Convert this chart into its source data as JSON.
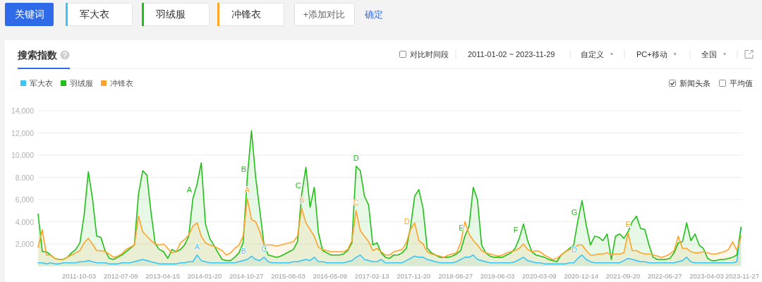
{
  "chart_data": {
    "type": "area",
    "title": "搜索指数",
    "legend": "top left",
    "grid": "y",
    "xlim": [
      "2011-01-02",
      "2023-11-27"
    ],
    "xticks": [
      "2011-10-03",
      "2012-07-09",
      "2013-04-15",
      "2014-01-20",
      "2014-10-27",
      "2015-08-03",
      "2016-05-09",
      "2017-02-13",
      "2017-11-20",
      "2018-08-27",
      "2019-06-03",
      "2020-03-09",
      "2020-12-14",
      "2021-09-20",
      "2022-06-27",
      "2023-04-03",
      "2023-11-27"
    ],
    "ylim": [
      0,
      14000
    ],
    "yticks": [
      {
        "value": 2000,
        "label": "2,000"
      },
      {
        "value": 4000,
        "label": "4,000"
      },
      {
        "value": 6000,
        "label": "6,000"
      },
      {
        "value": 8000,
        "label": "8,000"
      },
      {
        "value": 10000,
        "label": "10,000"
      },
      {
        "value": 12000,
        "label": "12,000"
      },
      {
        "value": 14000,
        "label": "14,000"
      }
    ],
    "x": [
      "2011-01-02",
      "2011-01-30",
      "2011-02-27",
      "2011-03-27",
      "2011-04-24",
      "2011-05-22",
      "2011-06-19",
      "2011-07-17",
      "2011-08-14",
      "2011-09-11",
      "2011-10-09",
      "2011-11-06",
      "2011-12-04",
      "2012-01-01",
      "2012-01-29",
      "2012-02-26",
      "2012-03-25",
      "2012-04-22",
      "2012-05-20",
      "2012-06-17",
      "2012-07-15",
      "2012-08-12",
      "2012-09-09",
      "2012-10-07",
      "2012-11-04",
      "2012-12-02",
      "2012-12-30",
      "2013-01-27",
      "2013-02-24",
      "2013-03-24",
      "2013-04-21",
      "2013-05-19",
      "2013-06-16",
      "2013-07-14",
      "2013-08-11",
      "2013-09-08",
      "2013-10-06",
      "2013-11-03",
      "2013-12-01",
      "2013-12-29",
      "2014-01-26",
      "2014-02-23",
      "2014-03-23",
      "2014-04-20",
      "2014-05-18",
      "2014-06-15",
      "2014-07-13",
      "2014-08-10",
      "2014-09-07",
      "2014-10-05",
      "2014-11-02",
      "2014-11-30",
      "2014-12-28",
      "2015-01-25",
      "2015-02-22",
      "2015-03-22",
      "2015-04-19",
      "2015-05-17",
      "2015-06-14",
      "2015-07-12",
      "2015-08-09",
      "2015-09-06",
      "2015-10-04",
      "2015-11-01",
      "2015-11-29",
      "2015-12-27",
      "2016-01-24",
      "2016-02-21",
      "2016-03-20",
      "2016-04-17",
      "2016-05-15",
      "2016-06-12",
      "2016-07-10",
      "2016-08-07",
      "2016-09-04",
      "2016-10-02",
      "2016-10-30",
      "2016-11-27",
      "2016-12-25",
      "2017-01-22",
      "2017-02-19",
      "2017-03-19",
      "2017-04-16",
      "2017-05-14",
      "2017-06-11",
      "2017-07-09",
      "2017-08-06",
      "2017-09-03",
      "2017-10-01",
      "2017-10-29",
      "2017-11-26",
      "2017-12-24",
      "2018-01-21",
      "2018-02-18",
      "2018-03-18",
      "2018-04-15",
      "2018-05-13",
      "2018-06-10",
      "2018-07-08",
      "2018-08-05",
      "2018-09-02",
      "2018-09-30",
      "2018-10-28",
      "2018-11-25",
      "2018-12-23",
      "2019-01-20",
      "2019-02-17",
      "2019-03-17",
      "2019-04-14",
      "2019-05-12",
      "2019-06-09",
      "2019-07-07",
      "2019-08-04",
      "2019-09-01",
      "2019-09-29",
      "2019-10-27",
      "2019-11-24",
      "2019-12-22",
      "2020-01-19",
      "2020-02-16",
      "2020-03-15",
      "2020-04-12",
      "2020-05-10",
      "2020-06-07",
      "2020-07-05",
      "2020-08-02",
      "2020-08-30",
      "2020-09-27",
      "2020-10-25",
      "2020-11-22",
      "2020-12-20",
      "2021-01-17",
      "2021-02-14",
      "2021-03-14",
      "2021-04-11",
      "2021-05-09",
      "2021-06-06",
      "2021-07-04",
      "2021-08-01",
      "2021-08-29",
      "2021-09-26",
      "2021-10-24",
      "2021-11-21",
      "2021-12-19",
      "2022-01-16",
      "2022-02-13",
      "2022-03-13",
      "2022-04-10",
      "2022-05-08",
      "2022-06-05",
      "2022-07-03",
      "2022-07-31",
      "2022-08-28",
      "2022-09-25",
      "2022-10-23",
      "2022-11-20",
      "2022-12-18",
      "2023-01-15",
      "2023-02-12",
      "2023-03-12",
      "2023-04-09",
      "2023-05-07",
      "2023-06-04",
      "2023-07-02",
      "2023-07-30",
      "2023-08-27",
      "2023-09-24",
      "2023-10-22",
      "2023-11-19"
    ],
    "series": [
      {
        "name": "军大衣",
        "color": "#3cc4f4",
        "values": [
          300,
          300,
          200,
          300,
          200,
          200,
          300,
          300,
          300,
          300,
          400,
          400,
          500,
          400,
          300,
          300,
          300,
          200,
          200,
          200,
          300,
          300,
          300,
          400,
          500,
          600,
          500,
          400,
          300,
          200,
          200,
          200,
          200,
          200,
          300,
          300,
          400,
          400,
          1000,
          500,
          400,
          300,
          300,
          300,
          300,
          300,
          300,
          300,
          400,
          500,
          600,
          900,
          600,
          500,
          800,
          400,
          300,
          300,
          300,
          300,
          300,
          400,
          400,
          500,
          600,
          500,
          800,
          400,
          400,
          300,
          300,
          300,
          300,
          300,
          400,
          500,
          800,
          1000,
          600,
          500,
          400,
          400,
          600,
          300,
          300,
          300,
          300,
          300,
          500,
          700,
          900,
          800,
          800,
          600,
          500,
          400,
          300,
          300,
          300,
          300,
          400,
          600,
          800,
          800,
          1000,
          600,
          500,
          400,
          300,
          300,
          300,
          300,
          300,
          300,
          400,
          600,
          800,
          500,
          400,
          300,
          300,
          200,
          200,
          200,
          200,
          200,
          200,
          300,
          300,
          700,
          1000,
          600,
          400,
          300,
          300,
          300,
          300,
          300,
          300,
          300,
          500,
          700,
          600,
          500,
          400,
          400,
          300,
          300,
          300,
          300,
          300,
          300,
          300,
          400,
          500,
          800,
          400,
          300,
          300,
          300,
          300,
          300,
          300,
          300,
          300,
          300,
          300,
          400,
          3500
        ]
      },
      {
        "name": "羽绒服",
        "color": "#21bf18",
        "values": [
          4700,
          1300,
          1300,
          1000,
          700,
          600,
          600,
          800,
          1200,
          1500,
          2100,
          4600,
          8500,
          6100,
          2700,
          2600,
          1400,
          700,
          600,
          800,
          1000,
          1300,
          1600,
          1900,
          6500,
          8600,
          8200,
          4800,
          2000,
          1500,
          1300,
          700,
          1500,
          1300,
          1500,
          1900,
          2700,
          6100,
          7400,
          9300,
          3800,
          2500,
          1900,
          1200,
          600,
          500,
          500,
          800,
          1200,
          2100,
          8000,
          12200,
          8000,
          5000,
          1900,
          1000,
          900,
          800,
          900,
          1100,
          1300,
          1500,
          2200,
          6500,
          8900,
          5300,
          7100,
          3000,
          1400,
          1200,
          1000,
          1000,
          1000,
          1100,
          1400,
          2100,
          9000,
          8600,
          6300,
          5500,
          1900,
          2100,
          1200,
          800,
          700,
          1000,
          1000,
          1200,
          1600,
          3500,
          6300,
          6900,
          5200,
          1600,
          1200,
          1000,
          800,
          800,
          800,
          900,
          1100,
          1400,
          2700,
          3600,
          7100,
          6000,
          1900,
          1200,
          900,
          800,
          800,
          800,
          1000,
          1200,
          1600,
          2500,
          3800,
          2300,
          1300,
          1000,
          900,
          800,
          600,
          500,
          400,
          1000,
          1300,
          1600,
          1900,
          4100,
          5900,
          3700,
          1900,
          2700,
          2600,
          2300,
          2900,
          600,
          2700,
          2900,
          2500,
          3100,
          4000,
          4500,
          3400,
          3300,
          1900,
          800,
          600,
          600,
          600,
          700,
          1200,
          2100,
          2200,
          3900,
          2300,
          2900,
          1900,
          1600,
          700,
          500,
          500,
          600,
          600,
          700,
          800,
          1000,
          3500
        ]
      },
      {
        "name": "冲锋衣",
        "color": "#fca42c",
        "values": [
          1700,
          3300,
          1000,
          1000,
          700,
          600,
          600,
          800,
          1000,
          1200,
          1400,
          2100,
          2500,
          2000,
          1400,
          1400,
          1300,
          1100,
          800,
          900,
          1100,
          1500,
          1700,
          1900,
          4500,
          3100,
          2700,
          2300,
          2000,
          1900,
          2000,
          1600,
          1200,
          1300,
          2100,
          2400,
          2800,
          3600,
          3900,
          2700,
          2100,
          1900,
          1800,
          1600,
          1400,
          1000,
          1200,
          1600,
          1900,
          2700,
          6100,
          4200,
          4000,
          3100,
          1900,
          1900,
          1900,
          1800,
          1900,
          2000,
          2100,
          2200,
          2700,
          5200,
          3900,
          3300,
          2700,
          1700,
          1500,
          1400,
          1300,
          1300,
          1300,
          1300,
          1500,
          2300,
          5000,
          3200,
          2700,
          2200,
          1400,
          1600,
          1300,
          1000,
          1000,
          1300,
          1400,
          1500,
          2100,
          3300,
          3900,
          2300,
          2000,
          1300,
          1100,
          1000,
          900,
          800,
          1000,
          1100,
          1200,
          2100,
          4000,
          2900,
          2300,
          1900,
          1400,
          1200,
          1100,
          1000,
          900,
          1000,
          1200,
          1300,
          1400,
          1600,
          2000,
          1500,
          1300,
          1400,
          1300,
          1000,
          800,
          600,
          700,
          1000,
          1300,
          1500,
          1600,
          1900,
          1900,
          1400,
          1000,
          1000,
          1100,
          1100,
          1200,
          1000,
          1100,
          1100,
          1200,
          3000,
          1400,
          1400,
          1200,
          1100,
          1100,
          1000,
          900,
          800,
          900,
          1100,
          1400,
          2700,
          1600,
          1600,
          1300,
          1200,
          1200,
          1300,
          1200,
          1100,
          1100,
          1200,
          1300,
          1500,
          2200,
          1400,
          2700
        ]
      }
    ],
    "annotations": [
      "关键词",
      "军大衣",
      "羽绒服",
      "冲锋衣",
      "+添加对比",
      "确定",
      "对比时间段",
      "2011-01-02 ~ 2023-11-29",
      "自定义",
      "PC+移动",
      "全国",
      "新闻头条",
      "平均值",
      {
        "text": "A",
        "x": "2013-11-03",
        "y": 6100
      },
      {
        "text": "B",
        "x": "2014-11-02",
        "y": 8000
      },
      {
        "text": "C",
        "x": "2015-11-01",
        "y": 6500
      },
      {
        "text": "D",
        "x": "2016-10-30",
        "y": 9000
      },
      {
        "text": "E",
        "x": "2018-10-28",
        "y": 2700
      },
      {
        "text": "F",
        "x": "2019-10-27",
        "y": 2500
      },
      {
        "text": "G",
        "x": "2020-11-22",
        "y": 4100
      },
      {
        "text": "A",
        "x": "2014-11-02",
        "y": 6100
      },
      {
        "text": "B",
        "x": "2015-11-01",
        "y": 5200
      },
      {
        "text": "C",
        "x": "2016-10-30",
        "y": 5000
      },
      {
        "text": "D",
        "x": "2017-10-29",
        "y": 3300
      },
      {
        "text": "E",
        "x": "2021-10-24",
        "y": 3000
      },
      {
        "text": "A",
        "x": "2013-12-01",
        "y": 1000
      },
      {
        "text": "B",
        "x": "2014-11-02",
        "y": 600
      },
      {
        "text": "C",
        "x": "2015-02-22",
        "y": 800
      },
      {
        "text": "D",
        "x": "2020-11-22",
        "y": 700
      }
    ]
  }
}
